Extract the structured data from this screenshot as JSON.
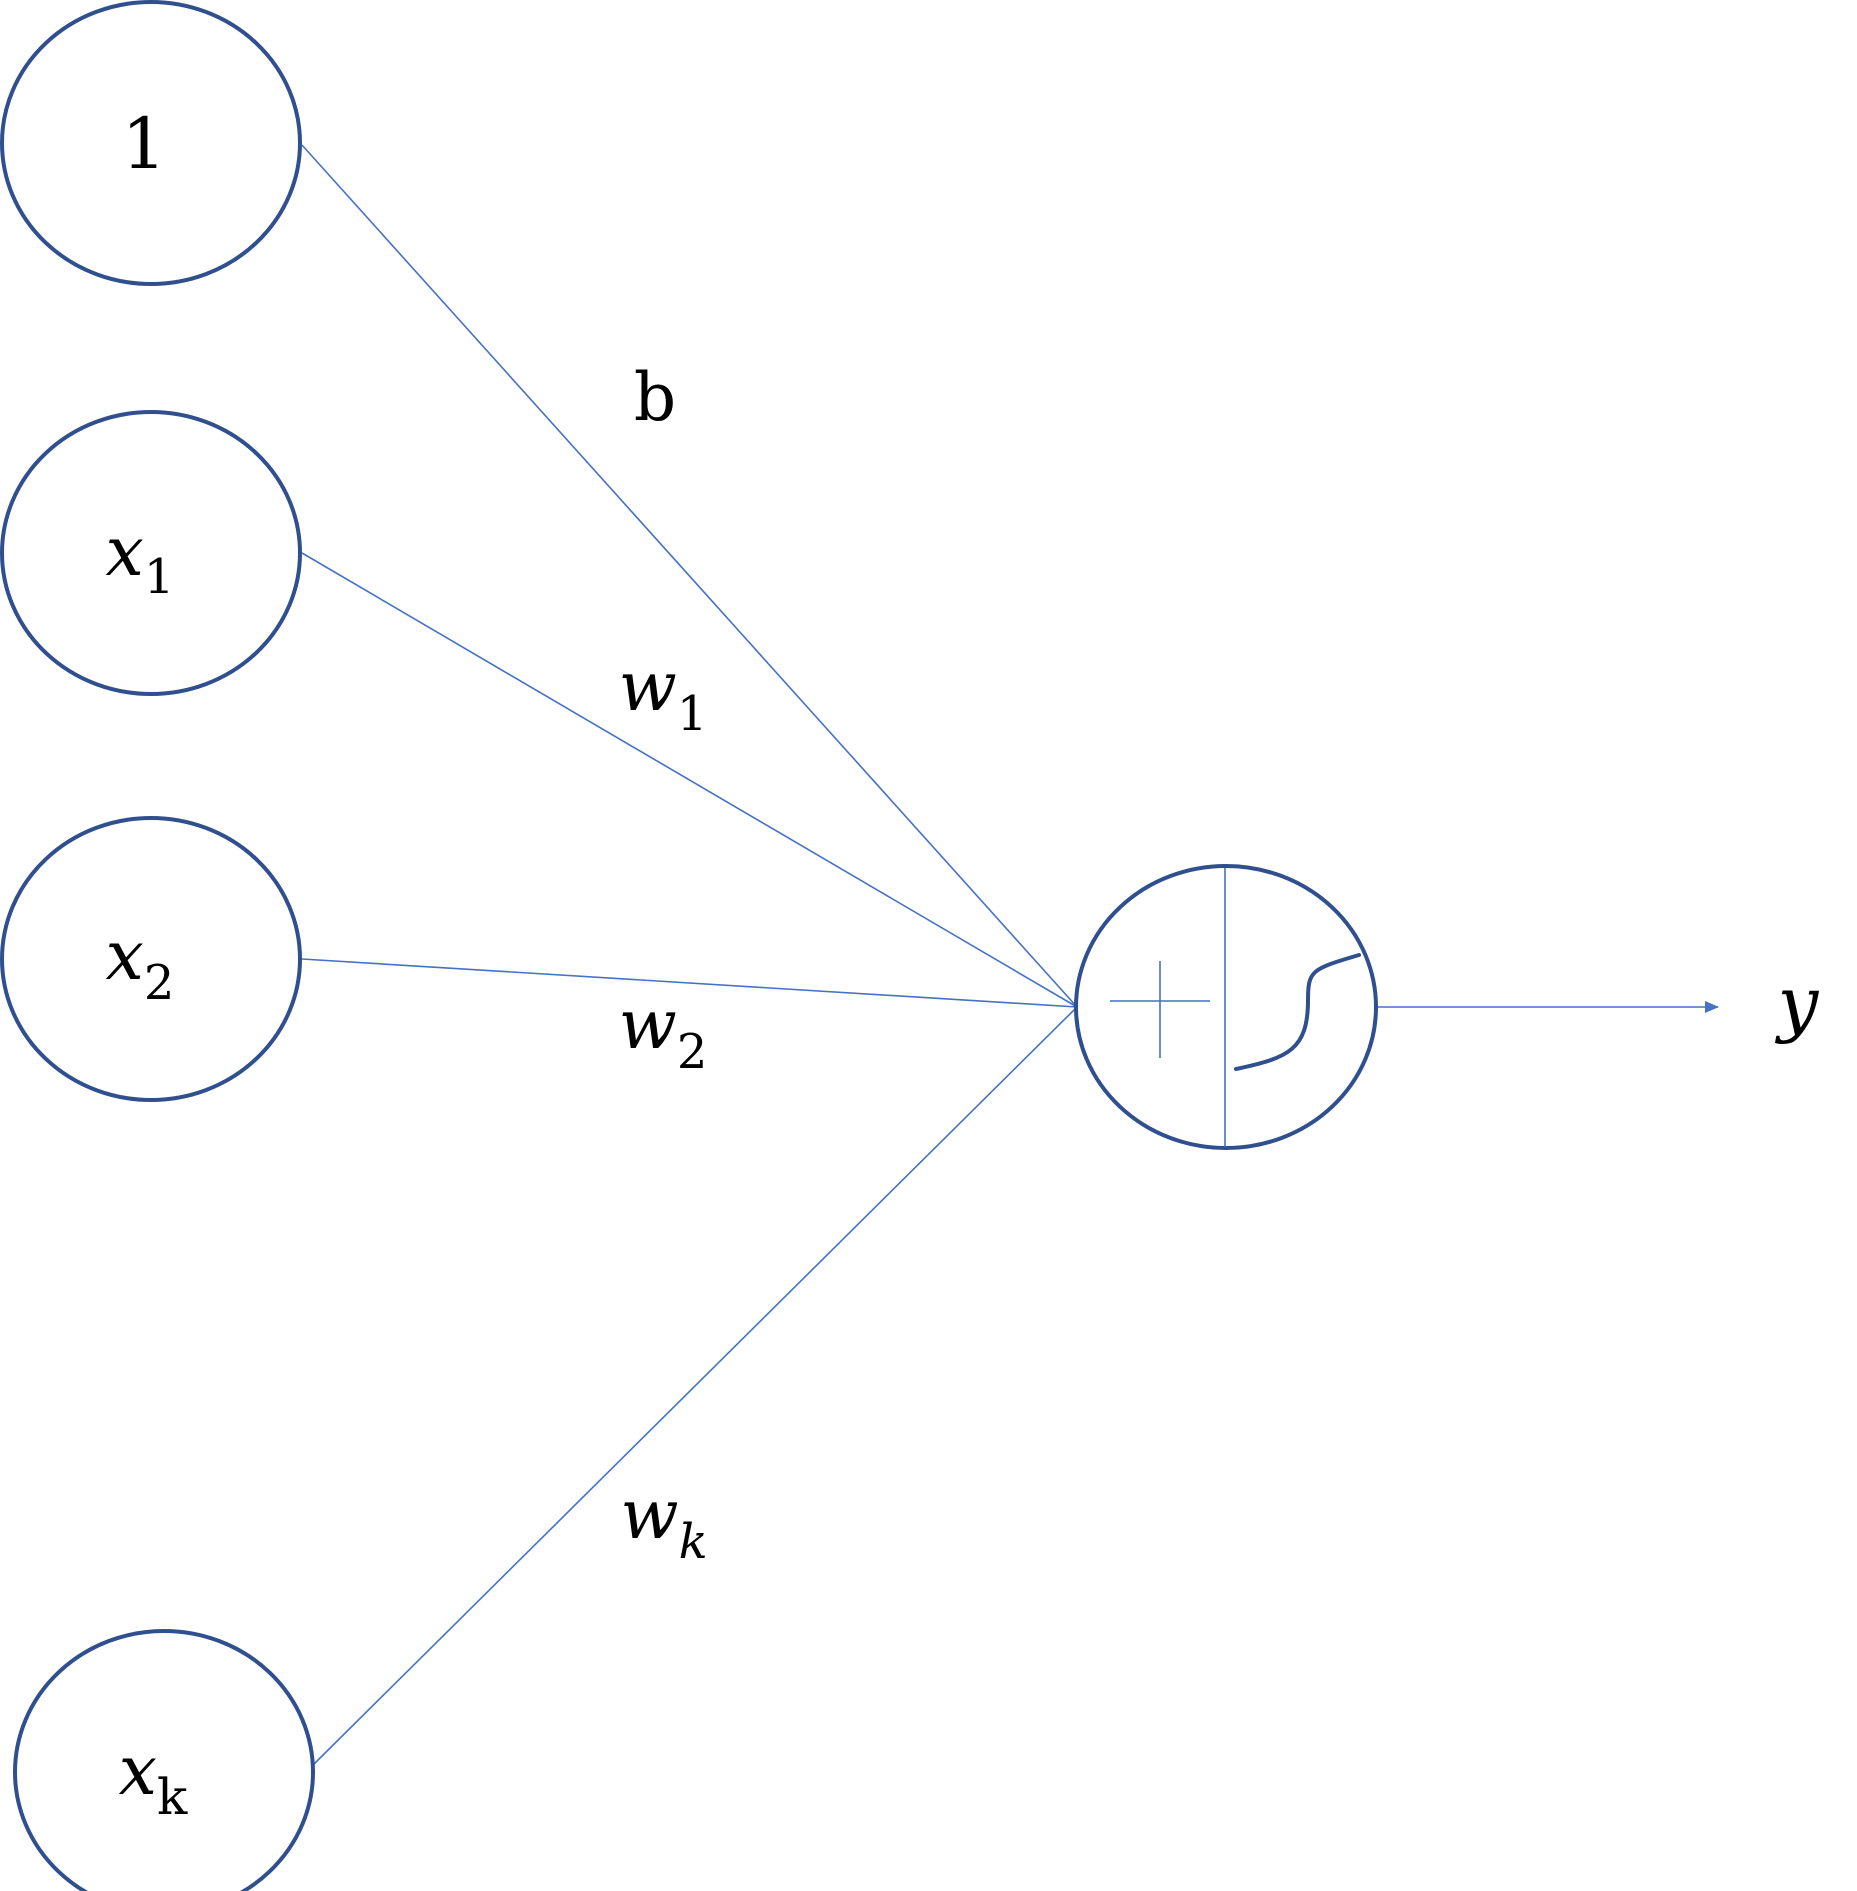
{
  "inputs": [
    {
      "var": "1",
      "sub": ""
    },
    {
      "var": "x",
      "sub": "1"
    },
    {
      "var": "x",
      "sub": "2"
    },
    {
      "var": "x",
      "sub": "k"
    }
  ],
  "weights": [
    {
      "var": "b",
      "sub": ""
    },
    {
      "var": "w",
      "sub": "1"
    },
    {
      "var": "w",
      "sub": "2"
    },
    {
      "var": "w",
      "sub": "k"
    }
  ],
  "output": {
    "var": "y"
  },
  "colors": {
    "node_stroke": "#2f4f8f",
    "edge_stroke": "#4472c4"
  }
}
